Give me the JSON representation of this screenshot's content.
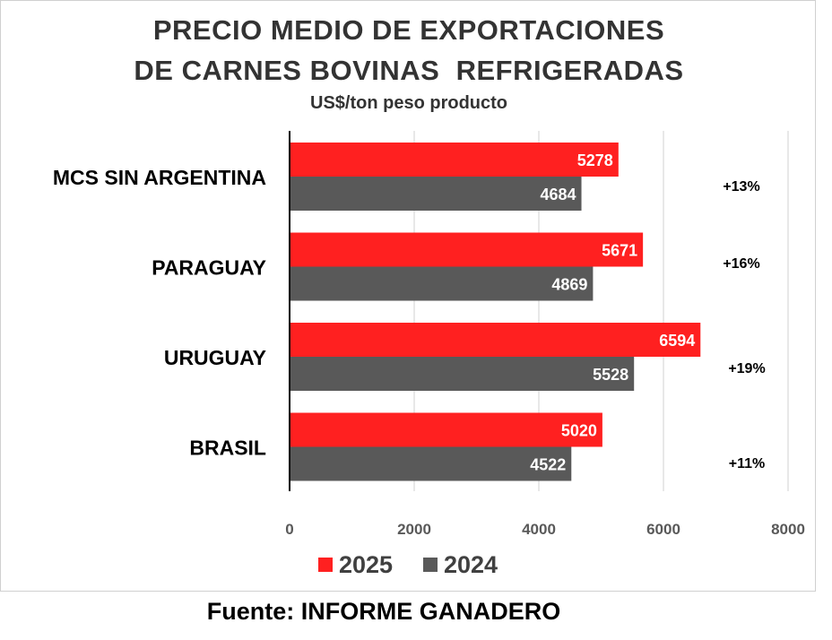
{
  "title_line1": "PRECIO MEDIO DE EXPORTACIONES",
  "title_line2": "DE CARNES BOVINAS  REFRIGERADAS",
  "subtitle": "US$/ton peso producto",
  "source": "Fuente: INFORME GANADERO",
  "colors": {
    "series_2025": "#ff2020",
    "series_2024": "#595959",
    "grid": "#d9d9d9",
    "axis": "#000000"
  },
  "chart_data": {
    "type": "bar",
    "orientation": "horizontal",
    "categories": [
      "MCS SIN ARGENTINA",
      "PARAGUAY",
      "URUGUAY",
      "BRASIL"
    ],
    "series": [
      {
        "name": "2025",
        "values": [
          5278,
          5671,
          6594,
          5020
        ]
      },
      {
        "name": "2024",
        "values": [
          4684,
          4869,
          5528,
          4522
        ]
      }
    ],
    "annotations": [
      "+13%",
      "+16%",
      "+19%",
      "+11%"
    ],
    "xlim": [
      0,
      8000
    ],
    "xticks": [
      0,
      2000,
      4000,
      6000,
      8000
    ],
    "grid": true,
    "legend_position": "bottom"
  }
}
